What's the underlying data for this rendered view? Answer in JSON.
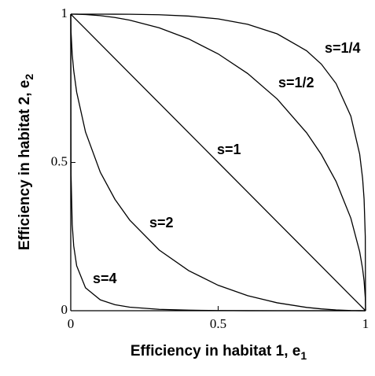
{
  "chart_data": {
    "type": "line",
    "x_label": "Efficiency in habitat 1, e",
    "x_label_sub": "1",
    "y_label": "Efficiency in habitat 2, e",
    "y_label_sub": "2",
    "xlim": [
      0,
      1
    ],
    "ylim": [
      0,
      1
    ],
    "xticks": [
      0,
      0.5,
      1
    ],
    "yticks": [
      0,
      0.5,
      1
    ],
    "x": [
      0,
      0.001,
      0.005,
      0.01,
      0.02,
      0.05,
      0.1,
      0.15,
      0.2,
      0.3,
      0.4,
      0.5,
      0.6,
      0.7,
      0.8,
      0.85,
      0.9,
      0.95,
      0.98,
      0.99,
      0.995,
      0.999,
      1
    ],
    "series": [
      {
        "name": "s=1/4",
        "color": "#000000",
        "values": [
          1,
          1,
          1,
          1,
          1,
          1,
          1,
          0.9999,
          0.9996,
          0.998,
          0.9935,
          0.984,
          0.9659,
          0.9337,
          0.8766,
          0.8315,
          0.7658,
          0.6563,
          0.5278,
          0.4455,
          0.3754,
          0.2514,
          0
        ]
      },
      {
        "name": "s=1/2",
        "color": "#000000",
        "values": [
          1,
          1,
          1,
          0.99995,
          0.9998,
          0.9987,
          0.995,
          0.9887,
          0.9798,
          0.9539,
          0.9165,
          0.866,
          0.8,
          0.7141,
          0.6,
          0.5268,
          0.4359,
          0.3122,
          0.199,
          0.1411,
          0.0999,
          0.0447,
          0
        ]
      },
      {
        "name": "s=1",
        "color": "#000000",
        "values": [
          1,
          0.999,
          0.995,
          0.99,
          0.98,
          0.95,
          0.9,
          0.85,
          0.8,
          0.7,
          0.6,
          0.5,
          0.4,
          0.3,
          0.2,
          0.15,
          0.1,
          0.05,
          0.02,
          0.01,
          0.005,
          0.001,
          0
        ]
      },
      {
        "name": "s=2",
        "color": "#000000",
        "values": [
          1,
          0.9378,
          0.8636,
          0.81,
          0.7372,
          0.6028,
          0.4675,
          0.3754,
          0.3056,
          0.2046,
          0.1351,
          0.0858,
          0.0508,
          0.0267,
          0.0111,
          0.0061,
          0.0026,
          0.0006,
          0.0001,
          0,
          0,
          0,
          0
        ]
      },
      {
        "name": "s=4",
        "color": "#000000",
        "values": [
          1,
          0.4569,
          0.2904,
          0.2186,
          0.1516,
          0.0772,
          0.0367,
          0.0203,
          0.012,
          0.0046,
          0.0018,
          0.0006,
          0.0002,
          0,
          0,
          0,
          0,
          0,
          0,
          0,
          0,
          0,
          0
        ]
      }
    ]
  }
}
